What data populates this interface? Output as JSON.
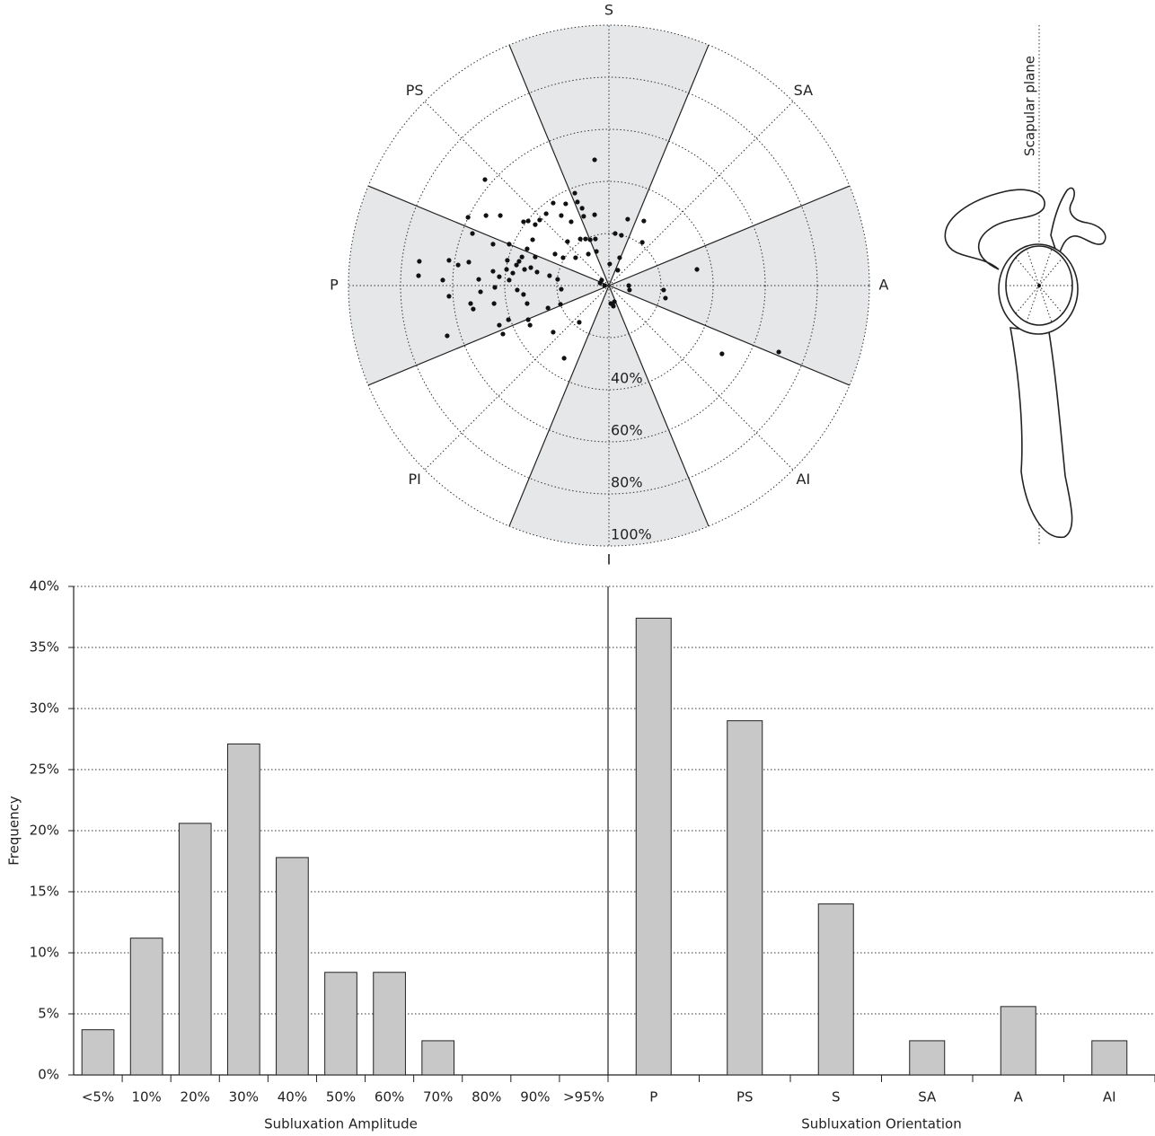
{
  "chart_data": [
    {
      "type": "polar-scatter",
      "directions": [
        "S",
        "SA",
        "A",
        "AI",
        "I",
        "PI",
        "P",
        "PS"
      ],
      "xlim": [
        -100,
        100
      ],
      "ylim": [
        -100,
        100
      ],
      "rticks": [
        {
          "value": 20,
          "label": null
        },
        {
          "value": 40,
          "label": "40%"
        },
        {
          "value": 60,
          "label": "60%"
        },
        {
          "value": 80,
          "label": "80%"
        },
        {
          "value": 100,
          "label": "100%"
        }
      ],
      "color": "#111111",
      "x": [
        -5.5,
        -47.6,
        -13.1,
        -16.6,
        -21.4,
        -12.1,
        -10.3,
        -5.5,
        -18.3,
        -9.7,
        -14.5,
        -24.1,
        -31.0,
        -32.8,
        -41.7,
        -47.2,
        -54.1,
        -52.4,
        -44.5,
        -38.3,
        -28.3,
        -26.6,
        7.2,
        13.4,
        2.4,
        4.8,
        12.8,
        -11.0,
        -9.0,
        -7.2,
        -5.2,
        -15.9,
        -29.3,
        -31.4,
        -33.4,
        -34.5,
        -30.0,
        -32.4,
        -35.5,
        -28.3,
        -20.7,
        -17.6,
        -12.8,
        -7.9,
        -4.8,
        4.1,
        0.3,
        3.4,
        -2.8,
        -3.4,
        -1.7,
        2.1,
        0.7,
        1.7,
        7.6,
        7.9,
        21.0,
        21.7,
        33.8,
        43.4,
        65.2,
        -72.8,
        -73.1,
        -61.4,
        -57.9,
        -63.8,
        -61.4,
        -53.8,
        -50.0,
        -49.3,
        -44.5,
        -43.8,
        -42.1,
        -44.1,
        -39.0,
        -38.3,
        -39.3,
        -36.9,
        -35.2,
        -53.1,
        -52.1,
        -38.6,
        -42.1,
        -40.7,
        -62.1,
        -31.0,
        -30.3,
        -23.4,
        -18.6,
        -21.4,
        -17.2,
        -11.4,
        -32.8,
        -31.4,
        -27.6,
        -22.8,
        -19.7,
        -18.3
      ],
      "y": [
        48.3,
        40.7,
        35.5,
        31.4,
        31.7,
        32.1,
        29.7,
        27.2,
        26.9,
        26.6,
        24.5,
        27.6,
        24.8,
        24.5,
        26.9,
        26.9,
        26.2,
        20.0,
        15.9,
        15.9,
        23.4,
        25.2,
        25.5,
        24.8,
        20.0,
        19.3,
        16.6,
        17.9,
        17.9,
        17.6,
        17.9,
        16.9,
        17.6,
        14.1,
        11.0,
        9.3,
        6.9,
        6.2,
        7.9,
        11.0,
        12.1,
        10.7,
        10.7,
        12.1,
        13.1,
        10.7,
        8.3,
        5.9,
        2.1,
        1.0,
        0,
        -6.2,
        -6.9,
        -7.9,
        0,
        -1.7,
        -1.7,
        -4.8,
        6.2,
        -26.2,
        -25.5,
        9.3,
        3.8,
        9.7,
        7.9,
        2.1,
        -4.1,
        9.0,
        2.4,
        -2.4,
        5.5,
        -0.7,
        3.4,
        -6.9,
        9.7,
        2.1,
        6.2,
        4.8,
        -1.7,
        -6.9,
        -9.0,
        -13.1,
        -15.2,
        -18.6,
        -19.3,
        -13.1,
        -15.2,
        -8.6,
        -7.2,
        -17.9,
        -27.9,
        -14.1,
        -3.4,
        -6.9,
        5.2,
        3.8,
        2.4,
        -1.4
      ]
    },
    {
      "type": "bar",
      "xlabel": "Subluxation Amplitude",
      "ylabel": "Frequency",
      "categories": [
        "<5%",
        "10%",
        "20%",
        "30%",
        "40%",
        "50%",
        "60%",
        "70%",
        "80%",
        "90%",
        ">95%"
      ],
      "values": [
        3.7,
        11.2,
        20.6,
        27.1,
        17.8,
        8.4,
        8.4,
        2.8,
        0,
        0,
        0
      ],
      "color": "#c8c8c8",
      "ylim": [
        0,
        40
      ],
      "grid": true,
      "yticks": [
        {
          "value": 0,
          "label": "0%"
        },
        {
          "value": 5,
          "label": "5%"
        },
        {
          "value": 10,
          "label": "10%"
        },
        {
          "value": 15,
          "label": "15%"
        },
        {
          "value": 20,
          "label": "20%"
        },
        {
          "value": 25,
          "label": "25%"
        },
        {
          "value": 30,
          "label": "30%"
        },
        {
          "value": 35,
          "label": "35%"
        },
        {
          "value": 40,
          "label": "40%"
        }
      ]
    },
    {
      "type": "bar",
      "xlabel": "Subluxation Orientation",
      "categories": [
        "P",
        "PS",
        "S",
        "SA",
        "A",
        "AI"
      ],
      "values": [
        37.4,
        29.0,
        14.0,
        2.8,
        5.6,
        2.8
      ],
      "color": "#c8c8c8",
      "ylim": [
        0,
        40
      ]
    }
  ],
  "diagram": {
    "label": "Scapular plane"
  }
}
